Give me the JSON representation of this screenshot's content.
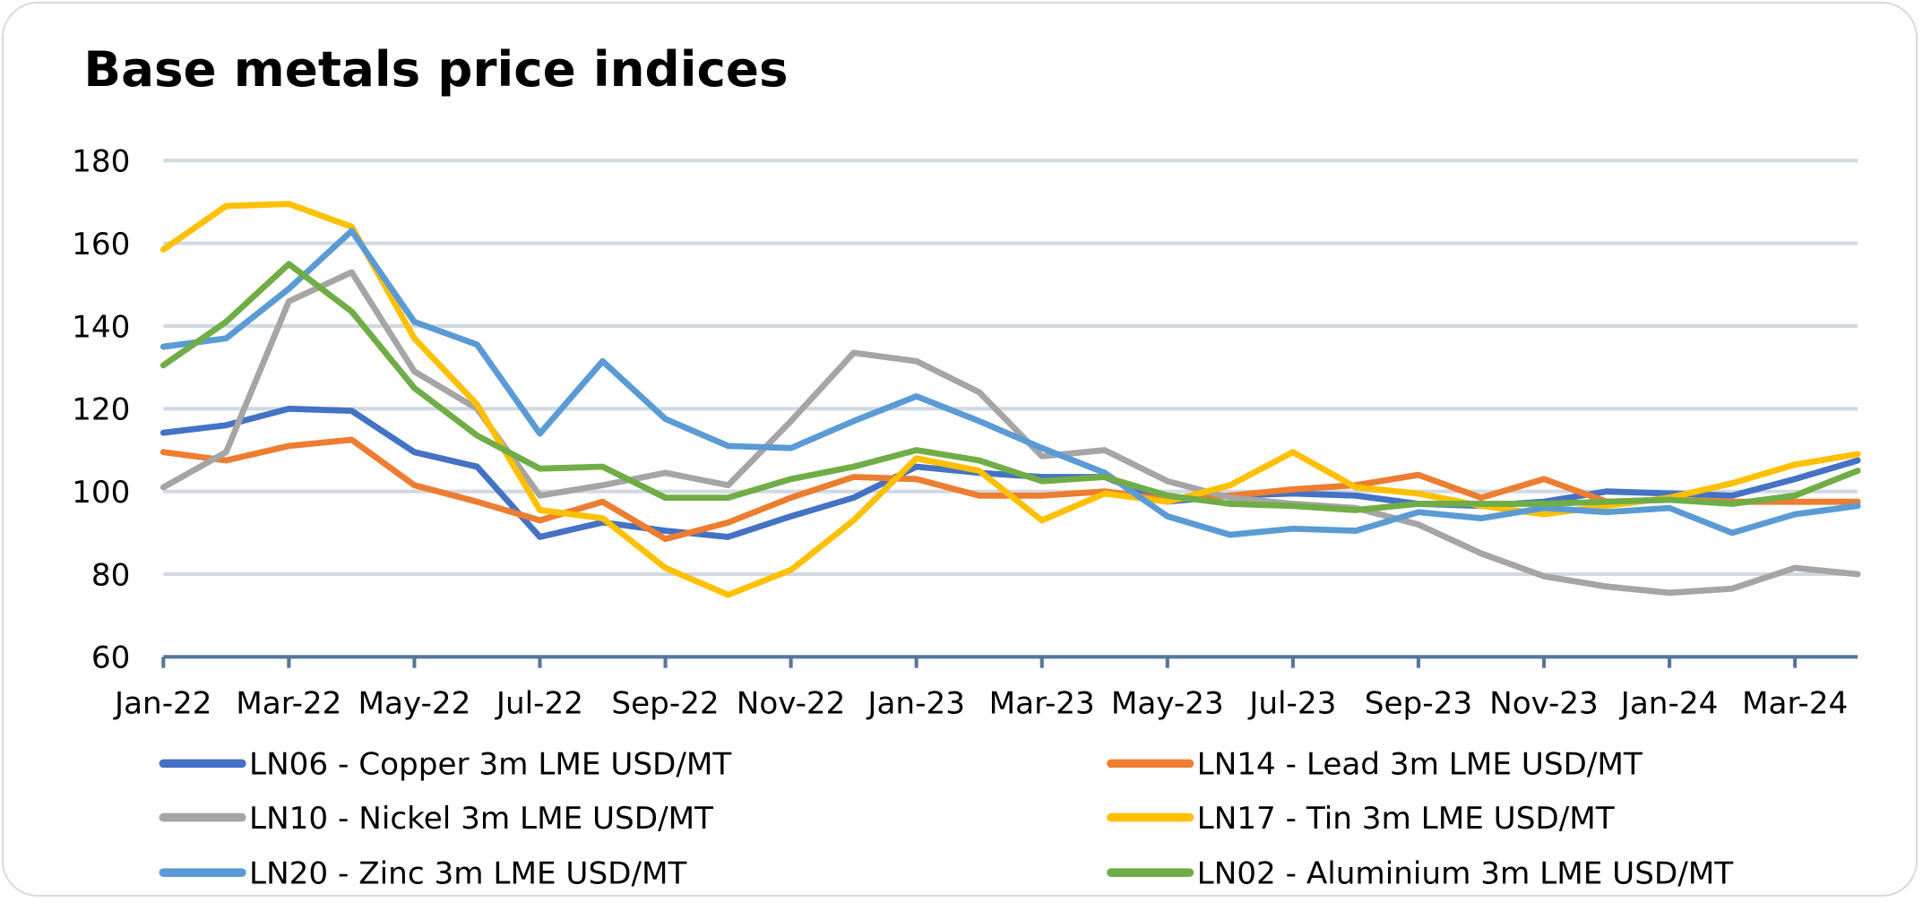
{
  "chart_data": {
    "type": "line",
    "title": "Base metals price indices",
    "xlabel": "",
    "ylabel": "",
    "ylim": [
      60,
      180
    ],
    "yticks": [
      60,
      80,
      100,
      120,
      140,
      160,
      180
    ],
    "grid": true,
    "legend_position": "bottom",
    "x": [
      "Jan-22",
      "Feb-22",
      "Mar-22",
      "Apr-22",
      "May-22",
      "Jun-22",
      "Jul-22",
      "Aug-22",
      "Sep-22",
      "Oct-22",
      "Nov-22",
      "Dec-22",
      "Jan-23",
      "Feb-23",
      "Mar-23",
      "Apr-23",
      "May-23",
      "Jun-23",
      "Jul-23",
      "Aug-23",
      "Sep-23",
      "Oct-23",
      "Nov-23",
      "Dec-23",
      "Jan-24",
      "Feb-24",
      "Mar-24",
      "Apr-24"
    ],
    "xtick_labels": [
      "Jan-22",
      "Mar-22",
      "May-22",
      "Jul-22",
      "Sep-22",
      "Nov-22",
      "Jan-23",
      "Mar-23",
      "May-23",
      "Jul-23",
      "Sep-23",
      "Nov-23",
      "Jan-24",
      "Mar-24"
    ],
    "series": [
      {
        "name": "LN06 - Copper 3m LME USD/MT",
        "color": "#4472C4",
        "values": [
          114.2,
          116,
          120,
          119.5,
          109.5,
          106,
          89,
          92.5,
          90.5,
          89,
          94,
          98.5,
          106,
          104.5,
          103.5,
          103.5,
          97.5,
          99,
          99.5,
          99,
          97,
          96.5,
          97.5,
          100,
          99.5,
          99,
          103,
          107.5
        ]
      },
      {
        "name": "LN14 - Lead 3m LME USD/MT",
        "color": "#ED7D31",
        "values": [
          109.5,
          107.5,
          111,
          112.5,
          101.5,
          97.5,
          93,
          97.5,
          88.5,
          92.5,
          98.5,
          103.5,
          103,
          99,
          99,
          100,
          98,
          99,
          100.5,
          101.5,
          104,
          98.5,
          103,
          97.5,
          98,
          97.5,
          97.5,
          97.5
        ]
      },
      {
        "name": "LN10 - Nickel 3m LME USD/MT",
        "color": "#A5A5A5",
        "values": [
          101,
          109.5,
          146,
          153,
          129,
          120,
          99,
          101.5,
          104.5,
          101.5,
          117,
          133.5,
          131.5,
          124,
          108.5,
          110,
          102.5,
          98.5,
          97,
          96,
          92,
          85,
          79.5,
          77,
          75.5,
          76.5,
          81.5,
          80
        ]
      },
      {
        "name": "LN17 - Tin 3m LME USD/MT",
        "color": "#FFC000",
        "values": [
          158.5,
          169,
          169.5,
          164,
          137,
          121,
          95.5,
          93.5,
          81.5,
          75,
          81,
          93,
          108,
          105,
          93,
          99.5,
          97.5,
          101.5,
          109.5,
          101,
          99.5,
          96.5,
          94.5,
          96.5,
          98.5,
          102,
          106.5,
          109
        ]
      },
      {
        "name": "LN20 - Zinc 3m LME USD/MT",
        "color": "#5B9BD5",
        "values": [
          135,
          137,
          149,
          163,
          141,
          135.5,
          114,
          131.5,
          117.5,
          111,
          110.5,
          117,
          123,
          117,
          110.5,
          104.5,
          94,
          89.5,
          91,
          90.5,
          95,
          93.5,
          96,
          95,
          96,
          90,
          94.5,
          96.5
        ]
      },
      {
        "name": "LN02 - Aluminium 3m LME USD/MT",
        "color": "#70AD47",
        "values": [
          130.5,
          141,
          155,
          143.5,
          125,
          113.5,
          105.5,
          106,
          98.5,
          98.5,
          103,
          106,
          110,
          107.5,
          102.5,
          103.5,
          99,
          97,
          96.5,
          95.5,
          97,
          97,
          97,
          97.5,
          98,
          97,
          99,
          105
        ]
      }
    ]
  },
  "legend": [
    {
      "label": "LN06 - Copper 3m LME USD/MT",
      "color": "#4472C4"
    },
    {
      "label": "LN14 - Lead 3m LME USD/MT",
      "color": "#ED7D31"
    },
    {
      "label": "LN10 - Nickel 3m LME USD/MT",
      "color": "#A5A5A5"
    },
    {
      "label": "LN17 - Tin 3m LME USD/MT",
      "color": "#FFC000"
    },
    {
      "label": "LN20 - Zinc 3m LME USD/MT",
      "color": "#5B9BD5"
    },
    {
      "label": "LN02 - Aluminium 3m LME USD/MT",
      "color": "#70AD47"
    }
  ],
  "colors": {
    "grid": "#D0D9E2",
    "axis": "#56779A"
  }
}
